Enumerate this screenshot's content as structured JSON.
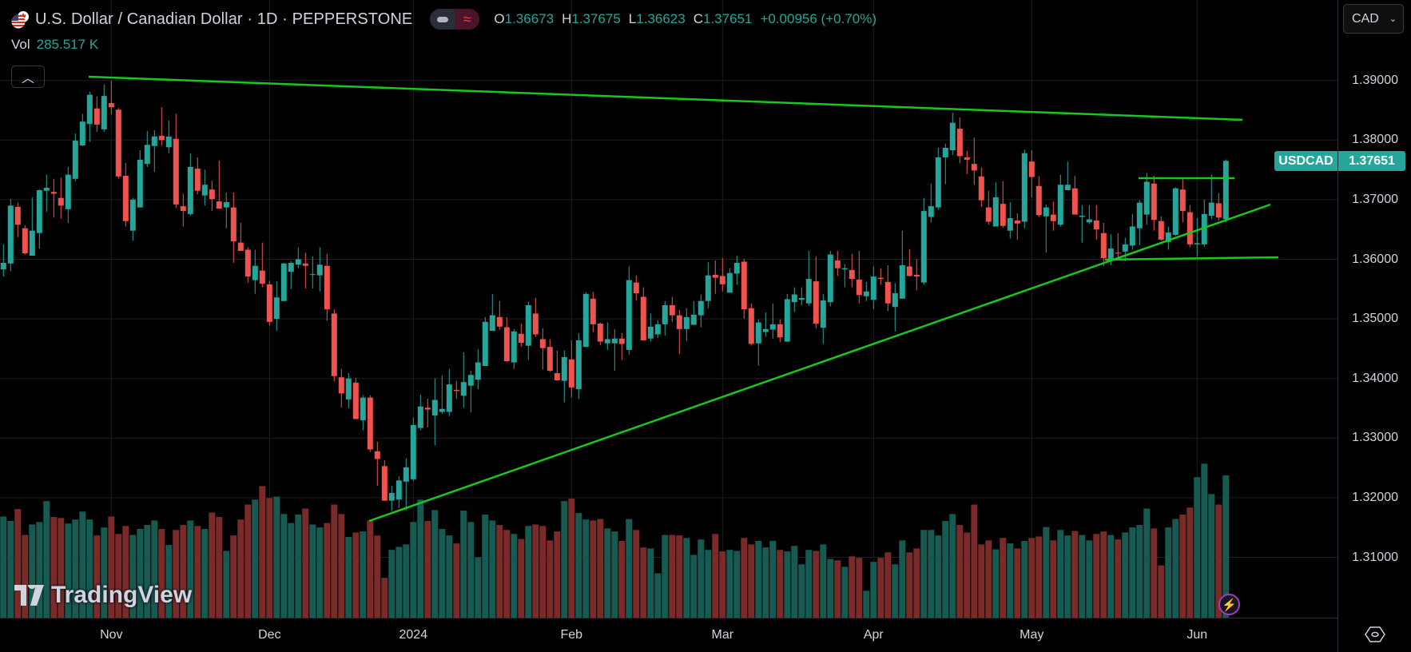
{
  "header": {
    "title": "U.S. Dollar / Canadian Dollar · 1D · PEPPERSTONE",
    "ohlc": {
      "o_label": "O",
      "o": "1.36673",
      "h_label": "H",
      "h": "1.37675",
      "l_label": "L",
      "l": "1.36623",
      "c_label": "C",
      "c": "1.37651",
      "change": "+0.00956 (+0.70%)"
    },
    "volume_label": "Vol",
    "volume_value": "285.517 K",
    "toggle_icon": "approx-icon"
  },
  "currency_selector": {
    "value": "CAD"
  },
  "price_tag": {
    "symbol": "USDCAD",
    "price": "1.37651"
  },
  "logo": "TradingView",
  "colors": {
    "up": "#26a69a",
    "down": "#ef5350",
    "vol_up": "#165a52",
    "vol_down": "#7b2a2a",
    "trendline": "#17c81d",
    "grid": "#1c1e24"
  },
  "chart_data": {
    "type": "candlestick",
    "symbol": "USDCAD",
    "interval": "1D",
    "ylim": [
      1.3,
      1.395
    ],
    "y_ticks": [
      "1.39000",
      "1.38000",
      "1.37000",
      "1.36000",
      "1.35000",
      "1.34000",
      "1.33000",
      "1.32000",
      "1.31000"
    ],
    "x_ticks": [
      "Nov",
      "Dec",
      "2024",
      "Feb",
      "Mar",
      "Apr",
      "May",
      "Jun"
    ],
    "grid": true,
    "ohlc": [
      [
        1.3583,
        1.3625,
        1.3571,
        1.3594
      ],
      [
        1.3593,
        1.3701,
        1.358,
        1.369
      ],
      [
        1.3688,
        1.3695,
        1.3637,
        1.3658
      ],
      [
        1.3652,
        1.3657,
        1.3608,
        1.361
      ],
      [
        1.3606,
        1.3704,
        1.3606,
        1.3648
      ],
      [
        1.3644,
        1.3717,
        1.3618,
        1.3716
      ],
      [
        1.3715,
        1.3742,
        1.368,
        1.372
      ],
      [
        1.3713,
        1.3735,
        1.367,
        1.371
      ],
      [
        1.3703,
        1.3737,
        1.3668,
        1.369
      ],
      [
        1.3684,
        1.3755,
        1.3661,
        1.3742
      ],
      [
        1.3735,
        1.3811,
        1.3731,
        1.3799
      ],
      [
        1.3791,
        1.3844,
        1.379,
        1.3831
      ],
      [
        1.3827,
        1.3881,
        1.3797,
        1.3876
      ],
      [
        1.3853,
        1.3873,
        1.3814,
        1.3826
      ],
      [
        1.3818,
        1.3893,
        1.3814,
        1.3874
      ],
      [
        1.3862,
        1.3899,
        1.3843,
        1.3855
      ],
      [
        1.3851,
        1.3854,
        1.3735,
        1.3739
      ],
      [
        1.374,
        1.3762,
        1.3655,
        1.3664
      ],
      [
        1.3648,
        1.3703,
        1.3631,
        1.37
      ],
      [
        1.3687,
        1.3783,
        1.3687,
        1.3767
      ],
      [
        1.376,
        1.3815,
        1.3755,
        1.3792
      ],
      [
        1.379,
        1.3817,
        1.3747,
        1.3806
      ],
      [
        1.3807,
        1.3855,
        1.3791,
        1.38
      ],
      [
        1.3788,
        1.3833,
        1.3778,
        1.3806
      ],
      [
        1.3802,
        1.3844,
        1.3686,
        1.3692
      ],
      [
        1.3689,
        1.371,
        1.3655,
        1.3681
      ],
      [
        1.3676,
        1.3778,
        1.3673,
        1.3755
      ],
      [
        1.3752,
        1.3771,
        1.3709,
        1.3715
      ],
      [
        1.3707,
        1.375,
        1.369,
        1.3725
      ],
      [
        1.3717,
        1.3732,
        1.3681,
        1.3701
      ],
      [
        1.3697,
        1.3766,
        1.3685,
        1.3685
      ],
      [
        1.3687,
        1.3712,
        1.3652,
        1.3696
      ],
      [
        1.3687,
        1.3712,
        1.3594,
        1.363
      ],
      [
        1.3628,
        1.3661,
        1.3614,
        1.3614
      ],
      [
        1.3616,
        1.362,
        1.3561,
        1.3571
      ],
      [
        1.3565,
        1.3616,
        1.3542,
        1.3589
      ],
      [
        1.3581,
        1.3628,
        1.3553,
        1.3559
      ],
      [
        1.3558,
        1.3564,
        1.3489,
        1.3495
      ],
      [
        1.35,
        1.3563,
        1.348,
        1.3536
      ],
      [
        1.353,
        1.3594,
        1.353,
        1.3593
      ],
      [
        1.3579,
        1.3597,
        1.355,
        1.3594
      ],
      [
        1.3591,
        1.362,
        1.3585,
        1.36
      ],
      [
        1.3593,
        1.3611,
        1.3551,
        1.3589
      ],
      [
        1.3574,
        1.3605,
        1.3551,
        1.3575
      ],
      [
        1.3573,
        1.362,
        1.3546,
        1.3591
      ],
      [
        1.3589,
        1.3609,
        1.3497,
        1.3516
      ],
      [
        1.3509,
        1.3516,
        1.3395,
        1.3404
      ],
      [
        1.3402,
        1.3416,
        1.3351,
        1.3375
      ],
      [
        1.3365,
        1.3409,
        1.335,
        1.34
      ],
      [
        1.3393,
        1.3401,
        1.3332,
        1.3332
      ],
      [
        1.333,
        1.3372,
        1.3313,
        1.3368
      ],
      [
        1.3368,
        1.3372,
        1.3277,
        1.3281
      ],
      [
        1.3278,
        1.3294,
        1.322,
        1.3265
      ],
      [
        1.3253,
        1.3263,
        1.3195,
        1.3195
      ],
      [
        1.3195,
        1.322,
        1.3178,
        1.3208
      ],
      [
        1.3197,
        1.3236,
        1.3183,
        1.3229
      ],
      [
        1.3227,
        1.3266,
        1.3179,
        1.3251
      ],
      [
        1.3231,
        1.3335,
        1.3228,
        1.3322
      ],
      [
        1.3317,
        1.3373,
        1.3313,
        1.3353
      ],
      [
        1.3351,
        1.3366,
        1.3318,
        1.3348
      ],
      [
        1.3338,
        1.34,
        1.3288,
        1.3364
      ],
      [
        1.3344,
        1.3405,
        1.3341,
        1.3349
      ],
      [
        1.3344,
        1.3416,
        1.3337,
        1.339
      ],
      [
        1.3381,
        1.3396,
        1.3366,
        1.3379
      ],
      [
        1.3371,
        1.3444,
        1.3351,
        1.3394
      ],
      [
        1.3388,
        1.3413,
        1.3343,
        1.3406
      ],
      [
        1.3398,
        1.3449,
        1.3382,
        1.3427
      ],
      [
        1.3421,
        1.3503,
        1.3421,
        1.3495
      ],
      [
        1.348,
        1.3542,
        1.348,
        1.3506
      ],
      [
        1.3503,
        1.353,
        1.3482,
        1.3487
      ],
      [
        1.3486,
        1.3503,
        1.3428,
        1.3429
      ],
      [
        1.3427,
        1.3483,
        1.3416,
        1.3479
      ],
      [
        1.3475,
        1.3492,
        1.3453,
        1.346
      ],
      [
        1.3455,
        1.3529,
        1.3431,
        1.3523
      ],
      [
        1.3509,
        1.3535,
        1.347,
        1.3474
      ],
      [
        1.3466,
        1.3484,
        1.3415,
        1.3451
      ],
      [
        1.3453,
        1.3466,
        1.3411,
        1.3413
      ],
      [
        1.3409,
        1.3447,
        1.3396,
        1.3397
      ],
      [
        1.3396,
        1.3447,
        1.336,
        1.3436
      ],
      [
        1.3432,
        1.3464,
        1.3368,
        1.3385
      ],
      [
        1.3382,
        1.3476,
        1.3366,
        1.3464
      ],
      [
        1.3453,
        1.3545,
        1.3453,
        1.3542
      ],
      [
        1.3534,
        1.3545,
        1.3478,
        1.3491
      ],
      [
        1.3492,
        1.3494,
        1.3456,
        1.3462
      ],
      [
        1.3459,
        1.3494,
        1.3448,
        1.3466
      ],
      [
        1.3459,
        1.3483,
        1.3413,
        1.3467
      ],
      [
        1.3467,
        1.3476,
        1.3431,
        1.3458
      ],
      [
        1.3448,
        1.3588,
        1.344,
        1.3565
      ],
      [
        1.3561,
        1.3573,
        1.3531,
        1.3543
      ],
      [
        1.3537,
        1.3553,
        1.3464,
        1.3464
      ],
      [
        1.3467,
        1.3509,
        1.3462,
        1.3487
      ],
      [
        1.3474,
        1.3498,
        1.3468,
        1.3491
      ],
      [
        1.3491,
        1.353,
        1.3472,
        1.3523
      ],
      [
        1.3523,
        1.3537,
        1.3495,
        1.3506
      ],
      [
        1.3506,
        1.3515,
        1.3441,
        1.3483
      ],
      [
        1.3483,
        1.3518,
        1.3463,
        1.3503
      ],
      [
        1.349,
        1.353,
        1.349,
        1.3507
      ],
      [
        1.3506,
        1.3541,
        1.3486,
        1.353
      ],
      [
        1.353,
        1.3595,
        1.3518,
        1.3573
      ],
      [
        1.3574,
        1.3598,
        1.3542,
        1.3569
      ],
      [
        1.3572,
        1.3602,
        1.3546,
        1.3558
      ],
      [
        1.3544,
        1.3585,
        1.3544,
        1.3577
      ],
      [
        1.3576,
        1.3606,
        1.3557,
        1.3594
      ],
      [
        1.3596,
        1.3601,
        1.35,
        1.3516
      ],
      [
        1.3518,
        1.3526,
        1.3455,
        1.3458
      ],
      [
        1.3459,
        1.3499,
        1.3422,
        1.3494
      ],
      [
        1.3478,
        1.3511,
        1.347,
        1.3483
      ],
      [
        1.3482,
        1.3526,
        1.3467,
        1.3491
      ],
      [
        1.3491,
        1.3499,
        1.3461,
        1.3469
      ],
      [
        1.3462,
        1.3542,
        1.3461,
        1.3533
      ],
      [
        1.3528,
        1.3553,
        1.3512,
        1.3541
      ],
      [
        1.3532,
        1.3553,
        1.3523,
        1.3535
      ],
      [
        1.3526,
        1.3614,
        1.3522,
        1.3567
      ],
      [
        1.3563,
        1.3605,
        1.3484,
        1.3492
      ],
      [
        1.3485,
        1.3542,
        1.3458,
        1.3531
      ],
      [
        1.3528,
        1.3614,
        1.3521,
        1.3608
      ],
      [
        1.3598,
        1.3614,
        1.3572,
        1.3585
      ],
      [
        1.3583,
        1.3592,
        1.3553,
        1.3585
      ],
      [
        1.3582,
        1.3609,
        1.3553,
        1.3567
      ],
      [
        1.3566,
        1.3614,
        1.3526,
        1.354
      ],
      [
        1.3538,
        1.3562,
        1.353,
        1.3546
      ],
      [
        1.3532,
        1.3588,
        1.3516,
        1.3571
      ],
      [
        1.3569,
        1.3585,
        1.3557,
        1.3567
      ],
      [
        1.3562,
        1.359,
        1.3513,
        1.3526
      ],
      [
        1.352,
        1.356,
        1.3479,
        1.3543
      ],
      [
        1.3534,
        1.3648,
        1.3534,
        1.359
      ],
      [
        1.3588,
        1.3617,
        1.3571,
        1.3572
      ],
      [
        1.3574,
        1.36,
        1.3548,
        1.3571
      ],
      [
        1.3561,
        1.3703,
        1.3557,
        1.3681
      ],
      [
        1.3671,
        1.3727,
        1.3662,
        1.3689
      ],
      [
        1.3687,
        1.3787,
        1.3683,
        1.3771
      ],
      [
        1.3771,
        1.3794,
        1.3726,
        1.3787
      ],
      [
        1.3783,
        1.3846,
        1.3775,
        1.3829
      ],
      [
        1.3819,
        1.3838,
        1.3761,
        1.3773
      ],
      [
        1.3771,
        1.3782,
        1.3743,
        1.3767
      ],
      [
        1.376,
        1.3804,
        1.3725,
        1.3749
      ],
      [
        1.3739,
        1.3754,
        1.3688,
        1.3699
      ],
      [
        1.3687,
        1.3715,
        1.3658,
        1.3663
      ],
      [
        1.3655,
        1.3729,
        1.3655,
        1.3704
      ],
      [
        1.3693,
        1.3731,
        1.3653,
        1.3656
      ],
      [
        1.3648,
        1.3696,
        1.3635,
        1.3669
      ],
      [
        1.3665,
        1.3677,
        1.3633,
        1.366
      ],
      [
        1.3663,
        1.3784,
        1.3652,
        1.3778
      ],
      [
        1.3764,
        1.3783,
        1.3704,
        1.3738
      ],
      [
        1.3723,
        1.3739,
        1.3671,
        1.3674
      ],
      [
        1.3672,
        1.3692,
        1.3611,
        1.3687
      ],
      [
        1.3675,
        1.3697,
        1.3648,
        1.3664
      ],
      [
        1.3658,
        1.3742,
        1.3655,
        1.3725
      ],
      [
        1.3716,
        1.3764,
        1.3716,
        1.3725
      ],
      [
        1.3719,
        1.374,
        1.3675,
        1.3675
      ],
      [
        1.3671,
        1.3691,
        1.3628,
        1.3673
      ],
      [
        1.3662,
        1.3691,
        1.3659,
        1.3667
      ],
      [
        1.3665,
        1.3691,
        1.3633,
        1.365
      ],
      [
        1.3644,
        1.3661,
        1.3589,
        1.3602
      ],
      [
        1.3598,
        1.3642,
        1.359,
        1.3618
      ],
      [
        1.3611,
        1.3644,
        1.36,
        1.361
      ],
      [
        1.3613,
        1.3636,
        1.3597,
        1.3625
      ],
      [
        1.3623,
        1.3676,
        1.3616,
        1.3655
      ],
      [
        1.3652,
        1.3699,
        1.3624,
        1.3695
      ],
      [
        1.3675,
        1.3745,
        1.3658,
        1.373
      ],
      [
        1.3727,
        1.374,
        1.3648,
        1.3666
      ],
      [
        1.3664,
        1.3672,
        1.3631,
        1.3633
      ],
      [
        1.3629,
        1.3655,
        1.3616,
        1.3645
      ],
      [
        1.3641,
        1.3721,
        1.3639,
        1.3719
      ],
      [
        1.3717,
        1.3736,
        1.3662,
        1.3681
      ],
      [
        1.3679,
        1.3691,
        1.362,
        1.3625
      ],
      [
        1.3625,
        1.3669,
        1.3604,
        1.3627
      ],
      [
        1.3625,
        1.37,
        1.3621,
        1.3676
      ],
      [
        1.3673,
        1.3742,
        1.3667,
        1.3695
      ],
      [
        1.3694,
        1.3711,
        1.3665,
        1.367
      ],
      [
        1.36673,
        1.37675,
        1.36623,
        1.37651
      ]
    ],
    "volume_k": [
      203,
      194,
      218,
      166,
      187,
      192,
      234,
      202,
      200,
      189,
      197,
      213,
      197,
      165,
      181,
      203,
      168,
      184,
      166,
      178,
      186,
      195,
      178,
      146,
      176,
      186,
      195,
      184,
      178,
      211,
      202,
      134,
      165,
      197,
      227,
      237,
      264,
      240,
      243,
      208,
      190,
      207,
      219,
      187,
      181,
      190,
      227,
      208,
      162,
      171,
      173,
      195,
      165,
      80,
      136,
      142,
      147,
      192,
      237,
      194,
      216,
      178,
      165,
      149,
      215,
      192,
      121,
      207,
      195,
      186,
      176,
      168,
      158,
      184,
      187,
      184,
      155,
      173,
      234,
      239,
      210,
      197,
      195,
      198,
      179,
      173,
      154,
      198,
      176,
      141,
      139,
      89,
      166,
      166,
      165,
      160,
      126,
      157,
      136,
      168,
      133,
      136,
      134,
      160,
      147,
      154,
      141,
      154,
      136,
      133,
      144,
      107,
      136,
      134,
      147,
      118,
      115,
      102,
      123,
      120,
      54,
      112,
      120,
      131,
      107,
      155,
      131,
      139,
      176,
      176,
      165,
      194,
      208,
      186,
      171,
      227,
      147,
      155,
      137,
      160,
      149,
      139,
      154,
      160,
      163,
      182,
      155,
      176,
      165,
      174,
      166,
      155,
      168,
      173,
      166,
      157,
      171,
      181,
      186,
      219,
      179,
      105,
      181,
      198,
      207,
      221,
      282,
      309,
      248,
      227,
      285.517
    ]
  }
}
